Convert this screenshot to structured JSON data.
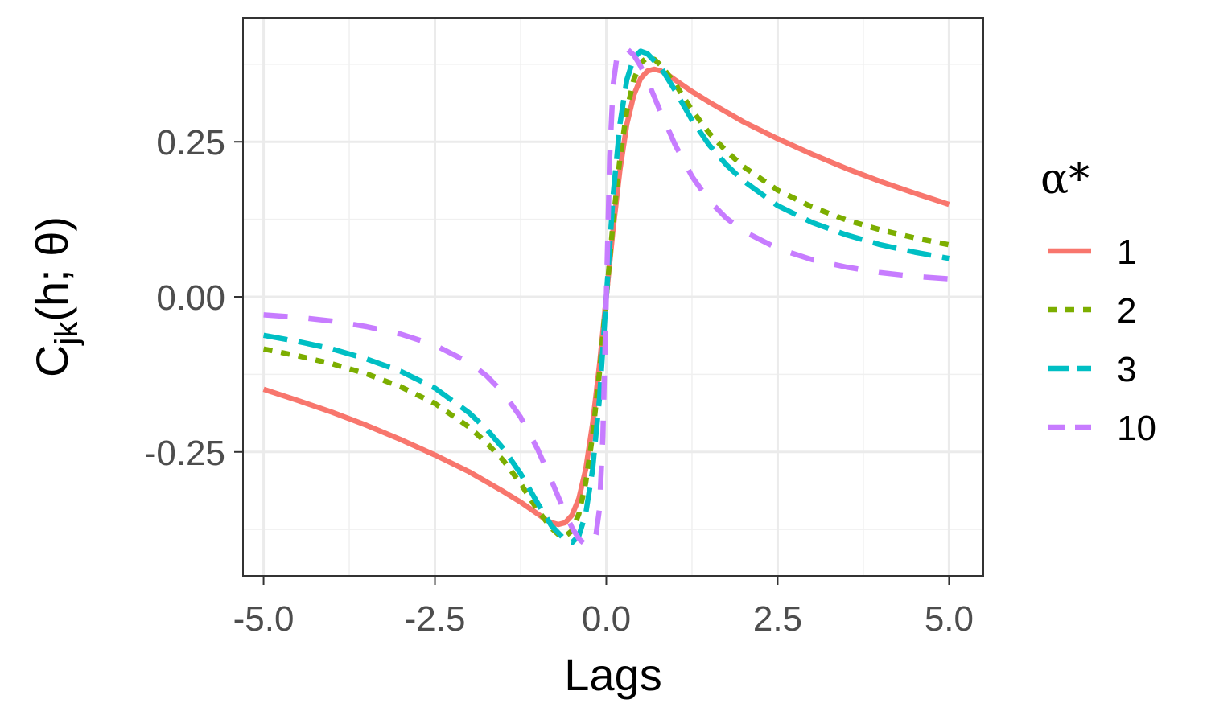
{
  "chart_data": {
    "type": "line",
    "xlabel": "Lags",
    "ylabel": {
      "main": "C",
      "sub": "jk",
      "rest": "(h; θ)"
    },
    "xlim": [
      -5.3,
      5.5
    ],
    "ylim": [
      -0.45,
      0.45
    ],
    "xticks": [
      -5.0,
      -2.5,
      0.0,
      2.5,
      5.0
    ],
    "xtick_labels": [
      "-5.0",
      "-2.5",
      "0.0",
      "2.5",
      "5.0"
    ],
    "yticks": [
      -0.25,
      0.0,
      0.25
    ],
    "ytick_labels": [
      "-0.25",
      "0.00",
      "0.25"
    ],
    "grid": true,
    "legend": {
      "title": "α*",
      "placement": "right"
    },
    "series": [
      {
        "name": "1",
        "color": "#F8766D",
        "dash": "solid",
        "x": [
          -5.0,
          -4.5,
          -4.0,
          -3.5,
          -3.0,
          -2.5,
          -2.0,
          -1.5,
          -1.25,
          -1.0,
          -0.9,
          -0.8,
          -0.7,
          -0.6,
          -0.5,
          -0.4,
          -0.3,
          -0.2,
          -0.1,
          0.0,
          0.1,
          0.2,
          0.3,
          0.4,
          0.5,
          0.6,
          0.7,
          0.8,
          0.9,
          1.0,
          1.25,
          1.5,
          2.0,
          2.5,
          3.0,
          3.5,
          4.0,
          4.5,
          5.0
        ],
        "y": [
          -0.149,
          -0.167,
          -0.186,
          -0.207,
          -0.23,
          -0.255,
          -0.282,
          -0.314,
          -0.331,
          -0.35,
          -0.358,
          -0.364,
          -0.367,
          -0.364,
          -0.352,
          -0.325,
          -0.278,
          -0.205,
          -0.11,
          0.0,
          0.11,
          0.205,
          0.278,
          0.325,
          0.352,
          0.364,
          0.367,
          0.364,
          0.358,
          0.35,
          0.331,
          0.314,
          0.282,
          0.255,
          0.23,
          0.207,
          0.186,
          0.167,
          0.149
        ]
      },
      {
        "name": "2",
        "color": "#7CAE00",
        "dash": "dotted",
        "x": [
          -5.0,
          -4.5,
          -4.0,
          -3.5,
          -3.0,
          -2.5,
          -2.0,
          -1.75,
          -1.5,
          -1.25,
          -1.0,
          -0.8,
          -0.7,
          -0.6,
          -0.5,
          -0.4,
          -0.3,
          -0.2,
          -0.1,
          0.0,
          0.1,
          0.2,
          0.3,
          0.4,
          0.5,
          0.6,
          0.7,
          0.8,
          1.0,
          1.25,
          1.5,
          1.75,
          2.0,
          2.5,
          3.0,
          3.5,
          4.0,
          4.5,
          5.0
        ],
        "y": [
          -0.084,
          -0.095,
          -0.108,
          -0.124,
          -0.145,
          -0.172,
          -0.21,
          -0.235,
          -0.264,
          -0.301,
          -0.344,
          -0.373,
          -0.383,
          -0.386,
          -0.377,
          -0.35,
          -0.3,
          -0.224,
          -0.122,
          0.0,
          0.122,
          0.224,
          0.3,
          0.35,
          0.377,
          0.386,
          0.383,
          0.373,
          0.344,
          0.301,
          0.264,
          0.235,
          0.21,
          0.172,
          0.145,
          0.124,
          0.108,
          0.095,
          0.084
        ]
      },
      {
        "name": "3",
        "color": "#00BFC4",
        "dash": "longdash",
        "x": [
          -5.0,
          -4.5,
          -4.0,
          -3.5,
          -3.0,
          -2.5,
          -2.0,
          -1.75,
          -1.5,
          -1.25,
          -1.0,
          -0.8,
          -0.6,
          -0.5,
          -0.4,
          -0.3,
          -0.2,
          -0.1,
          0.0,
          0.1,
          0.2,
          0.3,
          0.4,
          0.5,
          0.6,
          0.8,
          1.0,
          1.25,
          1.5,
          1.75,
          2.0,
          2.5,
          3.0,
          3.5,
          4.0,
          4.5,
          5.0
        ],
        "y": [
          -0.062,
          -0.072,
          -0.084,
          -0.1,
          -0.12,
          -0.147,
          -0.187,
          -0.213,
          -0.245,
          -0.285,
          -0.333,
          -0.369,
          -0.392,
          -0.396,
          -0.385,
          -0.35,
          -0.279,
          -0.164,
          0.0,
          0.164,
          0.279,
          0.35,
          0.385,
          0.396,
          0.392,
          0.369,
          0.333,
          0.285,
          0.245,
          0.213,
          0.187,
          0.147,
          0.12,
          0.1,
          0.084,
          0.072,
          0.062
        ]
      },
      {
        "name": "10",
        "color": "#C77CFF",
        "dash": "dashed",
        "x": [
          -5.0,
          -4.5,
          -4.0,
          -3.5,
          -3.0,
          -2.5,
          -2.0,
          -1.75,
          -1.5,
          -1.25,
          -1.0,
          -0.8,
          -0.6,
          -0.5,
          -0.4,
          -0.3,
          -0.25,
          -0.2,
          -0.15,
          -0.1,
          -0.05,
          0.0,
          0.05,
          0.1,
          0.15,
          0.2,
          0.25,
          0.3,
          0.4,
          0.5,
          0.6,
          0.8,
          1.0,
          1.25,
          1.5,
          1.75,
          2.0,
          2.5,
          3.0,
          3.5,
          4.0,
          4.5,
          5.0
        ],
        "y": [
          -0.029,
          -0.033,
          -0.039,
          -0.048,
          -0.06,
          -0.078,
          -0.106,
          -0.127,
          -0.155,
          -0.194,
          -0.246,
          -0.296,
          -0.349,
          -0.372,
          -0.39,
          -0.4,
          -0.402,
          -0.398,
          -0.383,
          -0.342,
          -0.225,
          0.0,
          0.225,
          0.342,
          0.383,
          0.398,
          0.402,
          0.4,
          0.39,
          0.372,
          0.349,
          0.296,
          0.246,
          0.194,
          0.155,
          0.127,
          0.106,
          0.078,
          0.06,
          0.048,
          0.039,
          0.033,
          0.029
        ]
      }
    ]
  }
}
